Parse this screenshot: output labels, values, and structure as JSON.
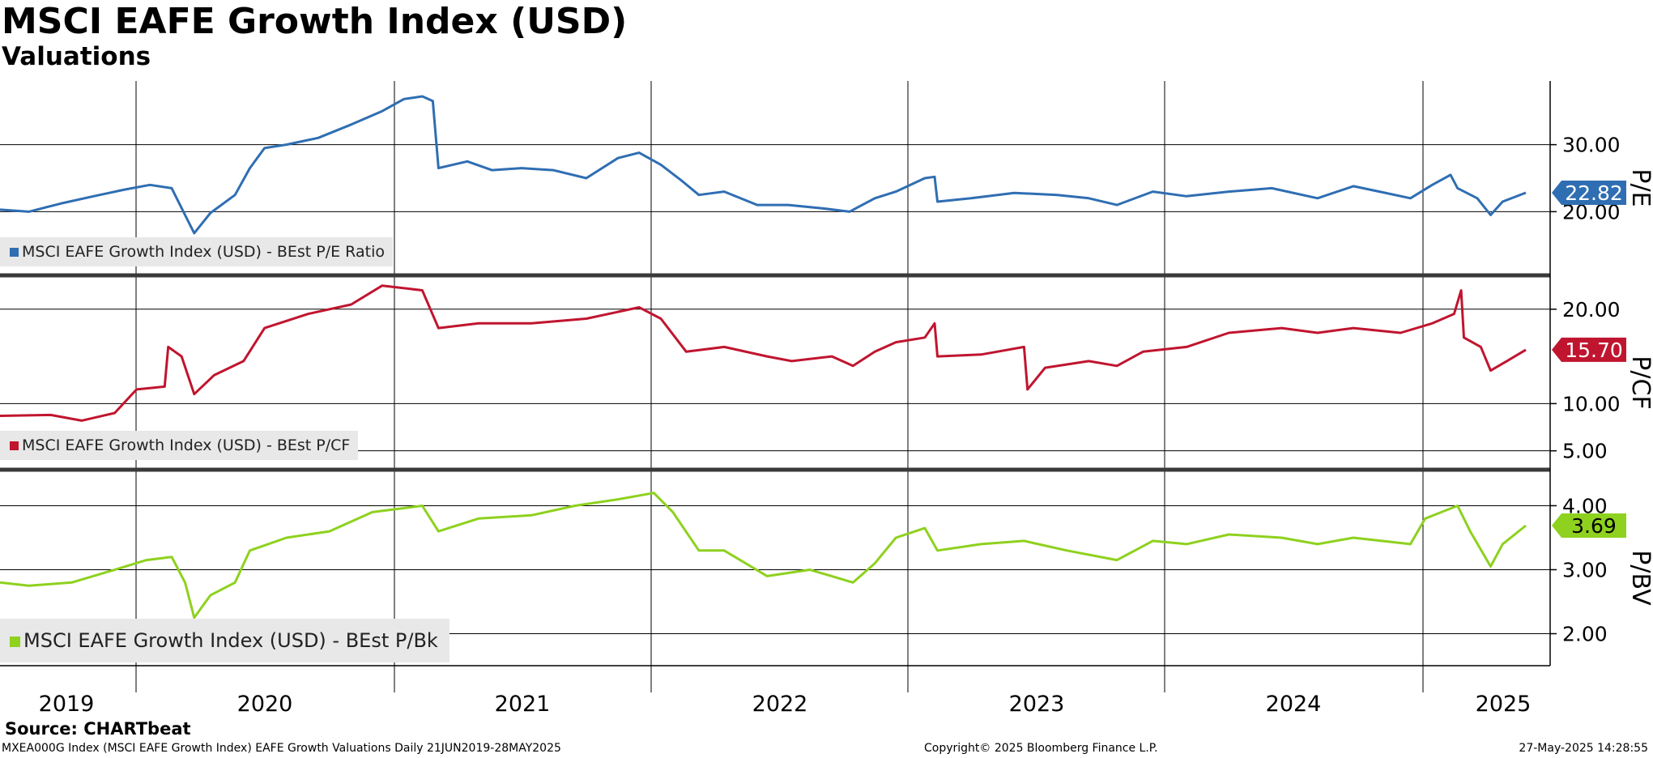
{
  "header": {
    "title": "MSCI EAFE Growth Index (USD)",
    "subtitle": "Valuations"
  },
  "source": "Source: CHARTbeat",
  "footer": {
    "left": "MXEA000G Index (MSCI EAFE Growth Index) EAFE Growth Valuations  Daily 21JUN2019-28MAY2025",
    "center": "Copyright© 2025 Bloomberg Finance L.P.",
    "right": "27-May-2025 14:28:55"
  },
  "chart_data": [
    {
      "type": "line",
      "panel": "P/E",
      "axis_label": "P/E",
      "series": [
        {
          "name": "MSCI EAFE Growth Index (USD) - BEst P/E Ratio",
          "color": "#2f6eb2",
          "last_value": "22.82",
          "points": [
            [
              "2019-06-21",
              20.3
            ],
            [
              "2019-08-01",
              20.0
            ],
            [
              "2019-09-15",
              21.2
            ],
            [
              "2019-11-01",
              22.3
            ],
            [
              "2019-12-15",
              23.3
            ],
            [
              "2020-01-20",
              24.0
            ],
            [
              "2020-02-20",
              23.5
            ],
            [
              "2020-03-10",
              19.5
            ],
            [
              "2020-03-23",
              16.8
            ],
            [
              "2020-04-15",
              19.8
            ],
            [
              "2020-05-20",
              22.5
            ],
            [
              "2020-06-10",
              26.5
            ],
            [
              "2020-07-01",
              29.5
            ],
            [
              "2020-08-01",
              30.0
            ],
            [
              "2020-09-15",
              31.0
            ],
            [
              "2020-11-01",
              33.0
            ],
            [
              "2020-12-15",
              35.0
            ],
            [
              "2021-01-15",
              36.8
            ],
            [
              "2021-02-10",
              37.2
            ],
            [
              "2021-02-25",
              36.5
            ],
            [
              "2021-03-05",
              26.5
            ],
            [
              "2021-04-15",
              27.5
            ],
            [
              "2021-05-20",
              26.2
            ],
            [
              "2021-07-01",
              26.5
            ],
            [
              "2021-08-15",
              26.2
            ],
            [
              "2021-10-01",
              25.0
            ],
            [
              "2021-11-15",
              28.0
            ],
            [
              "2021-12-15",
              28.8
            ],
            [
              "2022-01-15",
              27.0
            ],
            [
              "2022-02-15",
              24.5
            ],
            [
              "2022-03-10",
              22.5
            ],
            [
              "2022-04-15",
              23.0
            ],
            [
              "2022-06-01",
              21.0
            ],
            [
              "2022-07-15",
              21.0
            ],
            [
              "2022-09-01",
              20.5
            ],
            [
              "2022-10-10",
              20.0
            ],
            [
              "2022-11-15",
              22.0
            ],
            [
              "2022-12-15",
              23.0
            ],
            [
              "2023-01-25",
              25.0
            ],
            [
              "2023-02-08",
              25.2
            ],
            [
              "2023-02-12",
              21.5
            ],
            [
              "2023-04-01",
              22.0
            ],
            [
              "2023-06-01",
              22.8
            ],
            [
              "2023-08-01",
              22.5
            ],
            [
              "2023-09-15",
              22.0
            ],
            [
              "2023-10-25",
              21.0
            ],
            [
              "2023-12-15",
              23.0
            ],
            [
              "2024-02-01",
              22.3
            ],
            [
              "2024-04-01",
              23.0
            ],
            [
              "2024-06-01",
              23.5
            ],
            [
              "2024-08-05",
              22.0
            ],
            [
              "2024-09-25",
              23.8
            ],
            [
              "2024-11-01",
              23.0
            ],
            [
              "2024-12-15",
              22.0
            ],
            [
              "2025-01-15",
              24.0
            ],
            [
              "2025-02-10",
              25.5
            ],
            [
              "2025-02-20",
              23.5
            ],
            [
              "2025-03-20",
              22.0
            ],
            [
              "2025-04-08",
              19.5
            ],
            [
              "2025-04-25",
              21.5
            ],
            [
              "2025-05-28",
              22.82
            ]
          ]
        }
      ],
      "y_ticks": [
        "20.00",
        "30.00"
      ],
      "ylim": [
        10.5,
        39.5
      ],
      "grid": true,
      "legend_position": "bottom-left"
    },
    {
      "type": "line",
      "panel": "P/CF",
      "axis_label": "P/CF",
      "series": [
        {
          "name": "MSCI EAFE Growth Index (USD) - BEst P/CF",
          "color": "#c0152f",
          "last_value": "15.70",
          "points": [
            [
              "2019-06-21",
              8.7
            ],
            [
              "2019-09-01",
              8.8
            ],
            [
              "2019-10-15",
              8.2
            ],
            [
              "2019-12-01",
              9.0
            ],
            [
              "2020-01-01",
              11.5
            ],
            [
              "2020-02-10",
              11.8
            ],
            [
              "2020-02-15",
              16.0
            ],
            [
              "2020-03-05",
              15.0
            ],
            [
              "2020-03-23",
              11.0
            ],
            [
              "2020-04-20",
              13.0
            ],
            [
              "2020-06-01",
              14.5
            ],
            [
              "2020-07-01",
              18.0
            ],
            [
              "2020-09-01",
              19.5
            ],
            [
              "2020-11-01",
              20.5
            ],
            [
              "2020-12-15",
              22.5
            ],
            [
              "2021-02-10",
              22.0
            ],
            [
              "2021-03-05",
              18.0
            ],
            [
              "2021-05-01",
              18.5
            ],
            [
              "2021-07-15",
              18.5
            ],
            [
              "2021-10-01",
              19.0
            ],
            [
              "2021-12-15",
              20.2
            ],
            [
              "2022-01-15",
              19.0
            ],
            [
              "2022-02-20",
              15.5
            ],
            [
              "2022-04-15",
              16.0
            ],
            [
              "2022-06-15",
              15.0
            ],
            [
              "2022-07-20",
              14.5
            ],
            [
              "2022-09-15",
              15.0
            ],
            [
              "2022-10-15",
              14.0
            ],
            [
              "2022-11-15",
              15.5
            ],
            [
              "2022-12-15",
              16.5
            ],
            [
              "2023-01-25",
              17.0
            ],
            [
              "2023-02-08",
              18.5
            ],
            [
              "2023-02-12",
              15.0
            ],
            [
              "2023-04-15",
              15.2
            ],
            [
              "2023-06-15",
              16.0
            ],
            [
              "2023-06-20",
              11.5
            ],
            [
              "2023-07-15",
              13.8
            ],
            [
              "2023-09-15",
              14.5
            ],
            [
              "2023-10-25",
              14.0
            ],
            [
              "2023-12-01",
              15.5
            ],
            [
              "2024-02-01",
              16.0
            ],
            [
              "2024-04-01",
              17.5
            ],
            [
              "2024-06-15",
              18.0
            ],
            [
              "2024-08-05",
              17.5
            ],
            [
              "2024-09-25",
              18.0
            ],
            [
              "2024-12-01",
              17.5
            ],
            [
              "2025-01-15",
              18.5
            ],
            [
              "2025-02-15",
              19.5
            ],
            [
              "2025-02-25",
              22.0
            ],
            [
              "2025-03-01",
              17.0
            ],
            [
              "2025-03-25",
              16.0
            ],
            [
              "2025-04-08",
              13.5
            ],
            [
              "2025-05-01",
              14.5
            ],
            [
              "2025-05-28",
              15.7
            ]
          ]
        }
      ],
      "y_ticks": [
        "5.00",
        "10.00",
        "20.00"
      ],
      "ylim": [
        3.0,
        23.5
      ],
      "grid": true,
      "legend_position": "bottom-left"
    },
    {
      "type": "line",
      "panel": "P/BV",
      "axis_label": "P/BV",
      "series": [
        {
          "name": "MSCI EAFE Growth Index (USD) - BEst P/Bk",
          "color": "#8ed11e",
          "last_value": "3.69",
          "points": [
            [
              "2019-06-21",
              2.8
            ],
            [
              "2019-08-01",
              2.75
            ],
            [
              "2019-10-01",
              2.8
            ],
            [
              "2019-12-01",
              3.0
            ],
            [
              "2020-01-15",
              3.15
            ],
            [
              "2020-02-20",
              3.2
            ],
            [
              "2020-03-10",
              2.8
            ],
            [
              "2020-03-23",
              2.25
            ],
            [
              "2020-04-15",
              2.6
            ],
            [
              "2020-05-20",
              2.8
            ],
            [
              "2020-06-10",
              3.3
            ],
            [
              "2020-08-01",
              3.5
            ],
            [
              "2020-10-01",
              3.6
            ],
            [
              "2020-12-01",
              3.9
            ],
            [
              "2021-02-10",
              4.0
            ],
            [
              "2021-03-05",
              3.6
            ],
            [
              "2021-05-01",
              3.8
            ],
            [
              "2021-07-15",
              3.85
            ],
            [
              "2021-09-15",
              4.0
            ],
            [
              "2021-11-15",
              4.1
            ],
            [
              "2022-01-05",
              4.2
            ],
            [
              "2022-02-01",
              3.9
            ],
            [
              "2022-03-10",
              3.3
            ],
            [
              "2022-04-15",
              3.3
            ],
            [
              "2022-06-15",
              2.9
            ],
            [
              "2022-08-15",
              3.0
            ],
            [
              "2022-10-15",
              2.8
            ],
            [
              "2022-11-15",
              3.1
            ],
            [
              "2022-12-15",
              3.5
            ],
            [
              "2023-01-25",
              3.65
            ],
            [
              "2023-02-12",
              3.3
            ],
            [
              "2023-04-15",
              3.4
            ],
            [
              "2023-06-15",
              3.45
            ],
            [
              "2023-08-15",
              3.3
            ],
            [
              "2023-10-25",
              3.15
            ],
            [
              "2023-12-15",
              3.45
            ],
            [
              "2024-02-01",
              3.4
            ],
            [
              "2024-04-01",
              3.55
            ],
            [
              "2024-06-15",
              3.5
            ],
            [
              "2024-08-05",
              3.4
            ],
            [
              "2024-09-25",
              3.5
            ],
            [
              "2024-12-15",
              3.4
            ],
            [
              "2025-01-05",
              3.8
            ],
            [
              "2025-02-20",
              4.0
            ],
            [
              "2025-03-10",
              3.6
            ],
            [
              "2025-04-08",
              3.05
            ],
            [
              "2025-04-25",
              3.4
            ],
            [
              "2025-05-28",
              3.69
            ]
          ]
        }
      ],
      "y_ticks": [
        "2.00",
        "3.00",
        "4.00"
      ],
      "ylim": [
        1.5,
        4.55
      ],
      "grid": true,
      "legend_position": "bottom-left"
    }
  ],
  "x_axis": {
    "range": [
      "2019-06-21",
      "2025-05-28"
    ],
    "year_labels": [
      "2019",
      "2020",
      "2021",
      "2022",
      "2023",
      "2024",
      "2025"
    ]
  }
}
